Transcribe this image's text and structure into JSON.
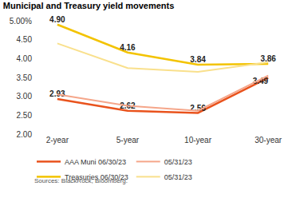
{
  "chart_data": {
    "type": "line",
    "title": "Municipal and Treasury yield movements",
    "source": "Sources: BlackRock, Bloomberg.",
    "categories": [
      "2-year",
      "5-year",
      "10-year",
      "30-year"
    ],
    "series": [
      {
        "name": "AAA Muni 06/30/23",
        "color": "#e9531d",
        "values": [
          2.93,
          2.62,
          2.56,
          3.49
        ],
        "data_labels": true,
        "value_labels": [
          "2.93",
          "2.62",
          "2.56",
          "3.49"
        ]
      },
      {
        "name": "05/31/23",
        "color": "#f5a68a",
        "values": [
          3.05,
          2.75,
          2.62,
          3.55
        ]
      },
      {
        "name": "Treasuries 06/30/23",
        "color": "#f3c300",
        "values": [
          4.9,
          4.16,
          3.84,
          3.86
        ],
        "data_labels": true,
        "value_labels": [
          "4.90",
          "4.16",
          "3.84",
          "3.86"
        ]
      },
      {
        "name": "05/31/23",
        "color": "#f9e08c",
        "values": [
          4.4,
          3.75,
          3.65,
          3.9
        ]
      }
    ],
    "ylim": [
      2,
      5
    ],
    "yticks": [
      {
        "value": 2,
        "label": "2.00"
      },
      {
        "value": 2.5,
        "label": "2.50"
      },
      {
        "value": 3,
        "label": "3.00"
      },
      {
        "value": 3.5,
        "label": "3.50"
      },
      {
        "value": 4,
        "label": "4.00"
      },
      {
        "value": 4.5,
        "label": "4.50"
      },
      {
        "value": 5,
        "label": "5.00%"
      }
    ],
    "grid": false,
    "legend": "bottom"
  }
}
